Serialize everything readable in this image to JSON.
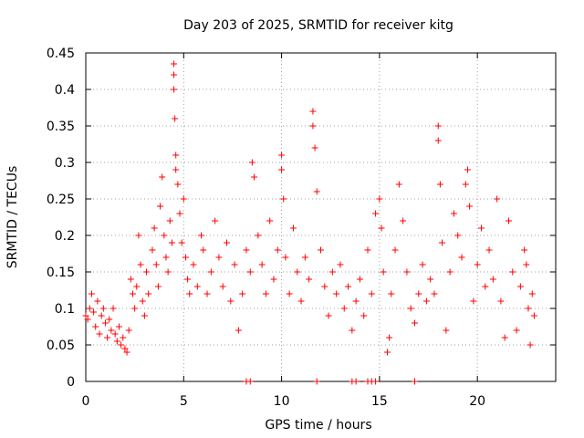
{
  "chart_data": {
    "type": "scatter",
    "title": "Day 203 of 2025, SRMTID for receiver kitg",
    "xlabel": "GPS time / hours",
    "ylabel": "SRMTID / TECUs",
    "xlim": [
      0,
      24
    ],
    "ylim": [
      0,
      0.45
    ],
    "xticks": [
      0,
      5,
      10,
      15,
      20
    ],
    "xtick_labels": [
      "0",
      "5",
      "10",
      "15",
      "20"
    ],
    "yticks": [
      0,
      0.05,
      0.1,
      0.15,
      0.2,
      0.25,
      0.3,
      0.35,
      0.4,
      0.45
    ],
    "ytick_labels": [
      "0",
      "0.05",
      "0.1",
      "0.15",
      "0.2",
      "0.25",
      "0.3",
      "0.35",
      "0.4",
      "0.45"
    ],
    "grid": true,
    "marker": "+",
    "marker_color": "#ff0000",
    "series": [
      {
        "name": "SRMTID",
        "points": [
          [
            0.0,
            0.09
          ],
          [
            0.1,
            0.085
          ],
          [
            0.2,
            0.1
          ],
          [
            0.3,
            0.12
          ],
          [
            0.4,
            0.095
          ],
          [
            0.5,
            0.075
          ],
          [
            0.6,
            0.11
          ],
          [
            0.7,
            0.065
          ],
          [
            0.8,
            0.09
          ],
          [
            0.9,
            0.1
          ],
          [
            1.0,
            0.08
          ],
          [
            1.1,
            0.06
          ],
          [
            1.2,
            0.085
          ],
          [
            1.3,
            0.07
          ],
          [
            1.4,
            0.1
          ],
          [
            1.5,
            0.065
          ],
          [
            1.6,
            0.055
          ],
          [
            1.7,
            0.075
          ],
          [
            1.8,
            0.05
          ],
          [
            1.9,
            0.06
          ],
          [
            2.0,
            0.045
          ],
          [
            2.1,
            0.04
          ],
          [
            2.2,
            0.07
          ],
          [
            2.3,
            0.14
          ],
          [
            2.4,
            0.12
          ],
          [
            2.5,
            0.1
          ],
          [
            2.6,
            0.13
          ],
          [
            2.7,
            0.2
          ],
          [
            2.8,
            0.16
          ],
          [
            2.9,
            0.11
          ],
          [
            3.0,
            0.09
          ],
          [
            3.1,
            0.15
          ],
          [
            3.2,
            0.12
          ],
          [
            3.4,
            0.18
          ],
          [
            3.5,
            0.21
          ],
          [
            3.6,
            0.16
          ],
          [
            3.7,
            0.13
          ],
          [
            3.8,
            0.24
          ],
          [
            3.9,
            0.28
          ],
          [
            4.0,
            0.2
          ],
          [
            4.1,
            0.17
          ],
          [
            4.2,
            0.15
          ],
          [
            4.3,
            0.22
          ],
          [
            4.4,
            0.19
          ],
          [
            4.5,
            0.435
          ],
          [
            4.5,
            0.42
          ],
          [
            4.5,
            0.4
          ],
          [
            4.55,
            0.36
          ],
          [
            4.6,
            0.31
          ],
          [
            4.6,
            0.29
          ],
          [
            4.7,
            0.27
          ],
          [
            4.8,
            0.23
          ],
          [
            4.9,
            0.19
          ],
          [
            5.0,
            0.25
          ],
          [
            5.1,
            0.17
          ],
          [
            5.2,
            0.14
          ],
          [
            5.3,
            0.12
          ],
          [
            5.5,
            0.16
          ],
          [
            5.7,
            0.13
          ],
          [
            5.9,
            0.2
          ],
          [
            6.0,
            0.18
          ],
          [
            6.2,
            0.12
          ],
          [
            6.4,
            0.15
          ],
          [
            6.6,
            0.22
          ],
          [
            6.8,
            0.17
          ],
          [
            7.0,
            0.13
          ],
          [
            7.2,
            0.19
          ],
          [
            7.4,
            0.11
          ],
          [
            7.6,
            0.16
          ],
          [
            7.8,
            0.07
          ],
          [
            8.0,
            0.12
          ],
          [
            8.2,
            0.18
          ],
          [
            8.4,
            0.15
          ],
          [
            8.5,
            0.3
          ],
          [
            8.6,
            0.28
          ],
          [
            8.8,
            0.2
          ],
          [
            9.0,
            0.16
          ],
          [
            9.2,
            0.12
          ],
          [
            9.4,
            0.22
          ],
          [
            9.6,
            0.14
          ],
          [
            9.8,
            0.18
          ],
          [
            10.0,
            0.31
          ],
          [
            10.0,
            0.29
          ],
          [
            10.1,
            0.25
          ],
          [
            10.2,
            0.17
          ],
          [
            10.4,
            0.12
          ],
          [
            10.6,
            0.21
          ],
          [
            10.8,
            0.15
          ],
          [
            11.0,
            0.11
          ],
          [
            11.2,
            0.17
          ],
          [
            11.4,
            0.14
          ],
          [
            11.6,
            0.37
          ],
          [
            11.6,
            0.35
          ],
          [
            11.7,
            0.32
          ],
          [
            11.8,
            0.26
          ],
          [
            12.0,
            0.18
          ],
          [
            12.2,
            0.13
          ],
          [
            12.4,
            0.09
          ],
          [
            12.6,
            0.15
          ],
          [
            12.8,
            0.12
          ],
          [
            13.0,
            0.16
          ],
          [
            13.2,
            0.1
          ],
          [
            13.4,
            0.13
          ],
          [
            13.6,
            0.07
          ],
          [
            13.8,
            0.11
          ],
          [
            14.0,
            0.14
          ],
          [
            14.2,
            0.09
          ],
          [
            14.4,
            0.18
          ],
          [
            14.6,
            0.12
          ],
          [
            14.8,
            0.23
          ],
          [
            15.0,
            0.25
          ],
          [
            15.1,
            0.21
          ],
          [
            15.2,
            0.15
          ],
          [
            15.4,
            0.04
          ],
          [
            15.5,
            0.06
          ],
          [
            15.6,
            0.12
          ],
          [
            15.8,
            0.18
          ],
          [
            16.0,
            0.27
          ],
          [
            16.2,
            0.22
          ],
          [
            16.4,
            0.15
          ],
          [
            16.6,
            0.1
          ],
          [
            16.8,
            0.08
          ],
          [
            17.0,
            0.12
          ],
          [
            17.2,
            0.16
          ],
          [
            17.4,
            0.11
          ],
          [
            17.6,
            0.14
          ],
          [
            17.8,
            0.12
          ],
          [
            18.0,
            0.35
          ],
          [
            18.0,
            0.33
          ],
          [
            18.1,
            0.27
          ],
          [
            18.2,
            0.19
          ],
          [
            18.4,
            0.07
          ],
          [
            18.6,
            0.15
          ],
          [
            18.8,
            0.23
          ],
          [
            19.0,
            0.2
          ],
          [
            19.2,
            0.17
          ],
          [
            19.4,
            0.27
          ],
          [
            19.5,
            0.29
          ],
          [
            19.6,
            0.24
          ],
          [
            19.8,
            0.11
          ],
          [
            20.0,
            0.16
          ],
          [
            20.2,
            0.21
          ],
          [
            20.4,
            0.13
          ],
          [
            20.6,
            0.18
          ],
          [
            20.8,
            0.14
          ],
          [
            21.0,
            0.25
          ],
          [
            21.2,
            0.11
          ],
          [
            21.4,
            0.06
          ],
          [
            21.6,
            0.22
          ],
          [
            21.8,
            0.15
          ],
          [
            22.0,
            0.07
          ],
          [
            22.2,
            0.13
          ],
          [
            22.4,
            0.18
          ],
          [
            22.5,
            0.16
          ],
          [
            22.6,
            0.1
          ],
          [
            22.7,
            0.05
          ],
          [
            22.8,
            0.12
          ],
          [
            22.9,
            0.09
          ],
          [
            8.2,
            0
          ],
          [
            8.4,
            0
          ],
          [
            11.8,
            0
          ],
          [
            13.6,
            0
          ],
          [
            13.8,
            0
          ],
          [
            14.4,
            0
          ],
          [
            14.6,
            0
          ],
          [
            14.8,
            0
          ],
          [
            16.8,
            0
          ]
        ]
      }
    ]
  }
}
